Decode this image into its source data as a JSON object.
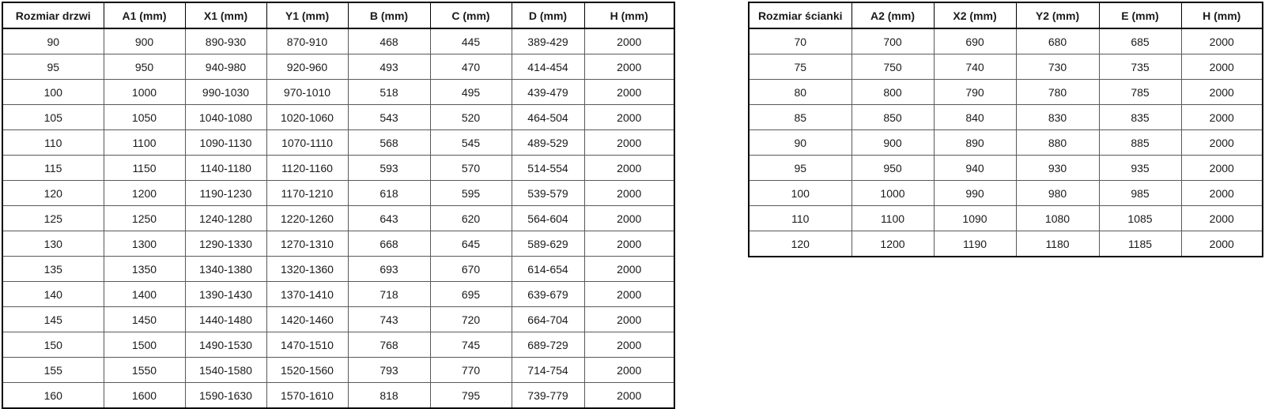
{
  "tables": {
    "doors": {
      "name": "door-sizes",
      "headers": [
        "Rozmiar drzwi",
        "A1 (mm)",
        "X1 (mm)",
        "Y1 (mm)",
        "B (mm)",
        "C (mm)",
        "D (mm)",
        "H (mm)"
      ],
      "rows": [
        [
          "90",
          "900",
          "890-930",
          "870-910",
          "468",
          "445",
          "389-429",
          "2000"
        ],
        [
          "95",
          "950",
          "940-980",
          "920-960",
          "493",
          "470",
          "414-454",
          "2000"
        ],
        [
          "100",
          "1000",
          "990-1030",
          "970-1010",
          "518",
          "495",
          "439-479",
          "2000"
        ],
        [
          "105",
          "1050",
          "1040-1080",
          "1020-1060",
          "543",
          "520",
          "464-504",
          "2000"
        ],
        [
          "110",
          "1100",
          "1090-1130",
          "1070-1110",
          "568",
          "545",
          "489-529",
          "2000"
        ],
        [
          "115",
          "1150",
          "1140-1180",
          "1120-1160",
          "593",
          "570",
          "514-554",
          "2000"
        ],
        [
          "120",
          "1200",
          "1190-1230",
          "1170-1210",
          "618",
          "595",
          "539-579",
          "2000"
        ],
        [
          "125",
          "1250",
          "1240-1280",
          "1220-1260",
          "643",
          "620",
          "564-604",
          "2000"
        ],
        [
          "130",
          "1300",
          "1290-1330",
          "1270-1310",
          "668",
          "645",
          "589-629",
          "2000"
        ],
        [
          "135",
          "1350",
          "1340-1380",
          "1320-1360",
          "693",
          "670",
          "614-654",
          "2000"
        ],
        [
          "140",
          "1400",
          "1390-1430",
          "1370-1410",
          "718",
          "695",
          "639-679",
          "2000"
        ],
        [
          "145",
          "1450",
          "1440-1480",
          "1420-1460",
          "743",
          "720",
          "664-704",
          "2000"
        ],
        [
          "150",
          "1500",
          "1490-1530",
          "1470-1510",
          "768",
          "745",
          "689-729",
          "2000"
        ],
        [
          "155",
          "1550",
          "1540-1580",
          "1520-1560",
          "793",
          "770",
          "714-754",
          "2000"
        ],
        [
          "160",
          "1600",
          "1590-1630",
          "1570-1610",
          "818",
          "795",
          "739-779",
          "2000"
        ]
      ]
    },
    "walls": {
      "name": "wall-sizes",
      "headers": [
        "Rozmiar ścianki",
        "A2 (mm)",
        "X2 (mm)",
        "Y2 (mm)",
        "E (mm)",
        "H (mm)"
      ],
      "rows": [
        [
          "70",
          "700",
          "690",
          "680",
          "685",
          "2000"
        ],
        [
          "75",
          "750",
          "740",
          "730",
          "735",
          "2000"
        ],
        [
          "80",
          "800",
          "790",
          "780",
          "785",
          "2000"
        ],
        [
          "85",
          "850",
          "840",
          "830",
          "835",
          "2000"
        ],
        [
          "90",
          "900",
          "890",
          "880",
          "885",
          "2000"
        ],
        [
          "95",
          "950",
          "940",
          "930",
          "935",
          "2000"
        ],
        [
          "100",
          "1000",
          "990",
          "980",
          "985",
          "2000"
        ],
        [
          "110",
          "1100",
          "1090",
          "1080",
          "1085",
          "2000"
        ],
        [
          "120",
          "1200",
          "1190",
          "1180",
          "1185",
          "2000"
        ]
      ]
    }
  },
  "colors": {
    "border_outer": "#000000",
    "border_inner": "#595959",
    "text": "#1a1a1a",
    "background": "#ffffff"
  }
}
